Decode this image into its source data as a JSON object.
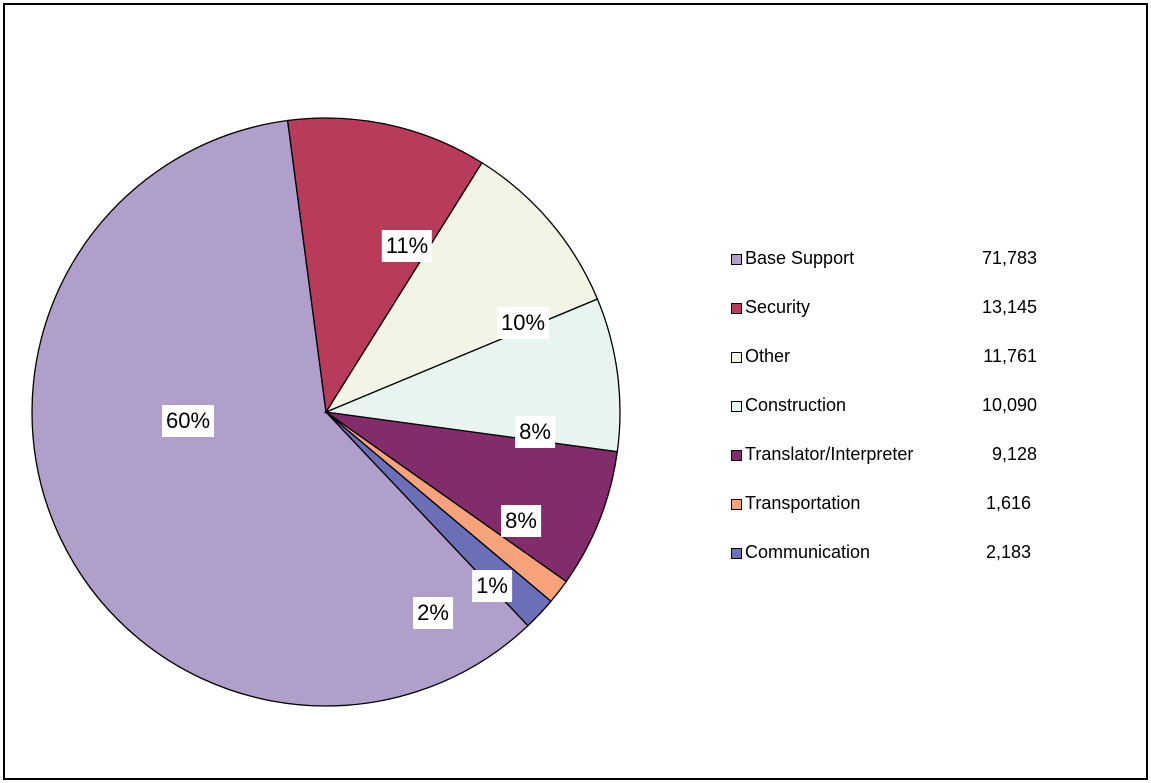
{
  "chart_data": {
    "type": "pie",
    "slices": [
      {
        "label": "Base Support",
        "value": 71783,
        "percent_label": "60%",
        "color": "#b09ecb"
      },
      {
        "label": "Communication",
        "value": 2183,
        "percent_label": "2%",
        "color": "#6b6fb8"
      },
      {
        "label": "Transportation",
        "value": 1616,
        "percent_label": "1%",
        "color": "#f6a27a"
      },
      {
        "label": "Translator/Interpreter",
        "value": 9128,
        "percent_label": "8%",
        "color": "#822c6b"
      },
      {
        "label": "Construction",
        "value": 10090,
        "percent_label": "8%",
        "color": "#e8f4f0"
      },
      {
        "label": "Other",
        "value": 11761,
        "percent_label": "10%",
        "color": "#f2f4e6"
      },
      {
        "label": "Security",
        "value": 13145,
        "percent_label": "11%",
        "color": "#b93b5a"
      }
    ],
    "legend": [
      {
        "label": "Base Support",
        "value": "71,783",
        "color": "#b09ecb"
      },
      {
        "label": "Security",
        "value": "13,145",
        "color": "#b93b5a"
      },
      {
        "label": "Other",
        "value": "11,761",
        "color": "#f2f4e6"
      },
      {
        "label": "Construction",
        "value": "10,090",
        "color": "#e8f4f0"
      },
      {
        "label": "Translator/Interpreter",
        "value": "9,128",
        "color": "#822c6b"
      },
      {
        "label": "Transportation",
        "value": "1,616",
        "color": "#f6a27a"
      },
      {
        "label": "Communication",
        "value": "2,183",
        "color": "#6b6fb8"
      }
    ],
    "legend_position": "right"
  }
}
